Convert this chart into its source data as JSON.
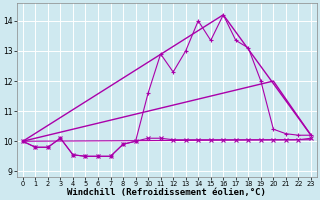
{
  "background_color": "#cfe9f0",
  "grid_color": "#ffffff",
  "line_color": "#aa00aa",
  "xlabel": "Windchill (Refroidissement éolien,°C)",
  "xlabel_fontsize": 6.5,
  "ylim": [
    8.8,
    14.6
  ],
  "xlim": [
    -0.5,
    23.5
  ],
  "yticks": [
    9,
    10,
    11,
    12,
    13,
    14
  ],
  "xticks": [
    0,
    1,
    2,
    3,
    4,
    5,
    6,
    7,
    8,
    9,
    10,
    11,
    12,
    13,
    14,
    15,
    16,
    17,
    18,
    19,
    20,
    21,
    22,
    23
  ],
  "series": [
    {
      "x": [
        0,
        1,
        2,
        3,
        4,
        5,
        6,
        7,
        8,
        9,
        10,
        11,
        12,
        13,
        14,
        15,
        16,
        17,
        18,
        19,
        20,
        21,
        22,
        23
      ],
      "y": [
        10.0,
        9.8,
        9.8,
        10.1,
        9.55,
        9.5,
        9.5,
        9.5,
        9.9,
        10.0,
        10.1,
        10.1,
        10.05,
        10.05,
        10.05,
        10.05,
        10.05,
        10.05,
        10.05,
        10.05,
        10.05,
        10.05,
        10.05,
        10.1
      ],
      "marker": "x",
      "linewidth": 0.8,
      "markersize": 2.5,
      "zorder": 3
    },
    {
      "x": [
        0,
        1,
        2,
        3,
        4,
        5,
        6,
        7,
        8,
        9,
        10,
        11,
        12,
        13,
        14,
        15,
        16,
        17,
        18,
        19,
        20,
        21,
        22,
        23
      ],
      "y": [
        10.0,
        9.8,
        9.8,
        10.1,
        9.55,
        9.5,
        9.5,
        9.5,
        9.9,
        10.0,
        11.6,
        12.9,
        12.3,
        13.0,
        14.0,
        13.35,
        14.2,
        13.35,
        13.1,
        12.0,
        10.4,
        10.25,
        10.2,
        10.2
      ],
      "marker": "+",
      "linewidth": 0.8,
      "markersize": 3.5,
      "zorder": 3
    },
    {
      "comment": "straight line 1 - from 0,10 to 20,12 to 23,10.2",
      "x": [
        0,
        20,
        23
      ],
      "y": [
        10.0,
        12.0,
        10.2
      ],
      "marker": null,
      "linewidth": 1.0,
      "markersize": 0,
      "zorder": 2
    },
    {
      "comment": "straight line 2 - from 0,10 to 16,14.2 to 23,10.2",
      "x": [
        0,
        16,
        23
      ],
      "y": [
        10.0,
        14.2,
        10.2
      ],
      "marker": null,
      "linewidth": 1.0,
      "markersize": 0,
      "zorder": 2
    },
    {
      "x": [
        0,
        23
      ],
      "y": [
        10.0,
        10.05
      ],
      "marker": null,
      "linewidth": 0.8,
      "markersize": 0,
      "zorder": 1
    }
  ]
}
